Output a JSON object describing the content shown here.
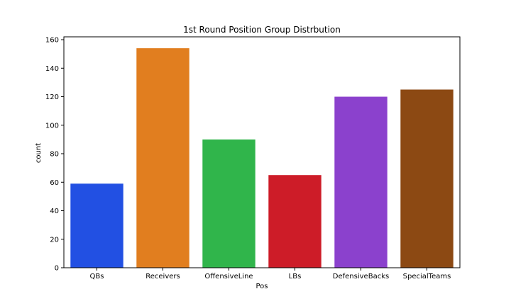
{
  "chart_data": {
    "type": "bar",
    "title": "1st Round Position Group Distrbution",
    "xlabel": "Pos",
    "ylabel": "count",
    "categories": [
      "QBs",
      "Receivers",
      "OffensiveLine",
      "LBs",
      "DefensiveBacks",
      "SpecialTeams"
    ],
    "values": [
      59,
      154,
      90,
      65,
      120,
      125
    ],
    "colors": [
      "#2250e3",
      "#e17e1f",
      "#30b54b",
      "#cd1c28",
      "#8b41cd",
      "#8c4913"
    ],
    "ylim": [
      0,
      162
    ],
    "yticks": [
      0,
      20,
      40,
      60,
      80,
      100,
      120,
      140,
      160
    ],
    "grid": false,
    "legend": "none"
  }
}
